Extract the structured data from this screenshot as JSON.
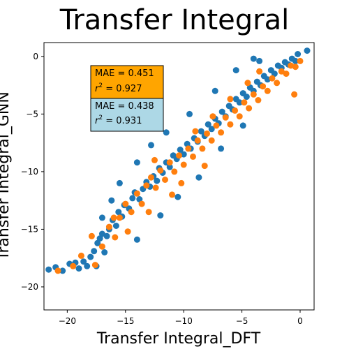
{
  "chart_data": {
    "type": "scatter",
    "title": "Transfer Integral",
    "xlabel": "Transfer Integral_DFT",
    "ylabel": "Transfer Integral_GNN",
    "xlim": [
      -22,
      1.2
    ],
    "ylim": [
      -22,
      1.2
    ],
    "xticks": [
      -20,
      -15,
      -10,
      -5,
      0
    ],
    "yticks": [
      -20,
      -15,
      -10,
      -5,
      0
    ],
    "xtick_labels": [
      "−20",
      "−15",
      "−10",
      "−5",
      "0"
    ],
    "ytick_labels": [
      "−20",
      "−15",
      "−10",
      "−5",
      "0"
    ],
    "grid": false,
    "colors": {
      "series_1": "#1f77b4",
      "series_2": "#ff7f0e"
    },
    "series": [
      {
        "color": "#1f77b4",
        "points": [
          [
            -21.6,
            -18.5
          ],
          [
            -21.0,
            -18.3
          ],
          [
            -20.4,
            -18.6
          ],
          [
            -19.8,
            -18.0
          ],
          [
            -19.3,
            -17.9
          ],
          [
            -19.0,
            -18.4
          ],
          [
            -18.6,
            -17.8
          ],
          [
            -18.3,
            -18.2
          ],
          [
            -18.0,
            -17.4
          ],
          [
            -17.7,
            -16.9
          ],
          [
            -17.4,
            -16.2
          ],
          [
            -17.2,
            -15.8
          ],
          [
            -17.0,
            -15.4
          ],
          [
            -16.6,
            -15.6
          ],
          [
            -16.4,
            -15.0
          ],
          [
            -16.1,
            -14.2
          ],
          [
            -15.8,
            -14.7
          ],
          [
            -15.6,
            -13.5
          ],
          [
            -15.3,
            -13.9
          ],
          [
            -15.1,
            -12.9
          ],
          [
            -14.7,
            -13.2
          ],
          [
            -14.4,
            -12.3
          ],
          [
            -14.2,
            -11.8
          ],
          [
            -13.8,
            -12.4
          ],
          [
            -13.5,
            -11.5
          ],
          [
            -13.2,
            -10.9
          ],
          [
            -12.9,
            -11.3
          ],
          [
            -12.6,
            -10.4
          ],
          [
            -12.3,
            -10.8
          ],
          [
            -12.1,
            -9.7
          ],
          [
            -11.8,
            -10.1
          ],
          [
            -11.5,
            -9.2
          ],
          [
            -11.2,
            -9.6
          ],
          [
            -10.9,
            -8.6
          ],
          [
            -10.6,
            -8.9
          ],
          [
            -10.3,
            -8.1
          ],
          [
            -10.0,
            -8.5
          ],
          [
            -9.7,
            -7.6
          ],
          [
            -9.4,
            -8.0
          ],
          [
            -9.1,
            -7.1
          ],
          [
            -8.8,
            -7.4
          ],
          [
            -8.5,
            -6.5
          ],
          [
            -8.2,
            -6.9
          ],
          [
            -7.9,
            -5.9
          ],
          [
            -7.6,
            -6.3
          ],
          [
            -7.3,
            -5.4
          ],
          [
            -7.0,
            -5.8
          ],
          [
            -6.7,
            -4.8
          ],
          [
            -6.4,
            -5.2
          ],
          [
            -6.1,
            -4.3
          ],
          [
            -5.8,
            -4.6
          ],
          [
            -5.5,
            -3.7
          ],
          [
            -5.2,
            -4.0
          ],
          [
            -4.9,
            -3.2
          ],
          [
            -4.6,
            -3.5
          ],
          [
            -4.3,
            -2.7
          ],
          [
            -4.0,
            -3.0
          ],
          [
            -3.7,
            -2.2
          ],
          [
            -3.4,
            -2.5
          ],
          [
            -3.1,
            -1.7
          ],
          [
            -2.8,
            -2.0
          ],
          [
            -2.5,
            -1.2
          ],
          [
            -2.2,
            -1.5
          ],
          [
            -1.9,
            -0.8
          ],
          [
            -1.6,
            -1.0
          ],
          [
            -1.3,
            -0.5
          ],
          [
            -1.0,
            -0.7
          ],
          [
            -0.7,
            -0.2
          ],
          [
            -0.4,
            -0.4
          ],
          [
            -0.2,
            0.2
          ],
          [
            0.6,
            0.5
          ],
          [
            -5.5,
            -1.2
          ],
          [
            -4.0,
            -0.2
          ],
          [
            -3.5,
            -0.4
          ],
          [
            -7.3,
            -3.0
          ],
          [
            -9.5,
            -5.0
          ],
          [
            -11.5,
            -6.6
          ],
          [
            -12.8,
            -7.7
          ],
          [
            -14.0,
            -9.2
          ],
          [
            -15.5,
            -11.0
          ],
          [
            -16.2,
            -12.5
          ],
          [
            -17.0,
            -14.0
          ],
          [
            -10.5,
            -12.2
          ],
          [
            -8.7,
            -10.5
          ],
          [
            -12.0,
            -13.8
          ],
          [
            -14.0,
            -15.9
          ],
          [
            -6.8,
            -8.0
          ],
          [
            -4.9,
            -6.0
          ],
          [
            -16.8,
            -17.0
          ],
          [
            -17.5,
            -18.2
          ]
        ]
      },
      {
        "color": "#ff7f0e",
        "points": [
          [
            -20.8,
            -18.6
          ],
          [
            -19.5,
            -18.2
          ],
          [
            -17.6,
            -18.1
          ],
          [
            -18.8,
            -17.3
          ],
          [
            -17.9,
            -15.6
          ],
          [
            -17.0,
            -16.5
          ],
          [
            -16.4,
            -14.8
          ],
          [
            -15.9,
            -15.7
          ],
          [
            -15.5,
            -14.0
          ],
          [
            -15.0,
            -12.8
          ],
          [
            -14.5,
            -13.5
          ],
          [
            -14.0,
            -11.9
          ],
          [
            -13.6,
            -12.8
          ],
          [
            -13.2,
            -11.2
          ],
          [
            -12.8,
            -10.5
          ],
          [
            -12.4,
            -11.4
          ],
          [
            -12.0,
            -9.9
          ],
          [
            -11.6,
            -10.7
          ],
          [
            -11.2,
            -9.2
          ],
          [
            -10.8,
            -10.0
          ],
          [
            -10.4,
            -8.6
          ],
          [
            -10.0,
            -9.4
          ],
          [
            -9.6,
            -8.0
          ],
          [
            -9.2,
            -8.7
          ],
          [
            -8.8,
            -7.3
          ],
          [
            -8.4,
            -8.0
          ],
          [
            -8.0,
            -6.7
          ],
          [
            -7.6,
            -7.3
          ],
          [
            -7.2,
            -6.0
          ],
          [
            -6.8,
            -6.6
          ],
          [
            -6.4,
            -5.3
          ],
          [
            -6.0,
            -5.9
          ],
          [
            -5.6,
            -4.7
          ],
          [
            -5.2,
            -5.2
          ],
          [
            -4.8,
            -4.0
          ],
          [
            -4.4,
            -4.5
          ],
          [
            -4.0,
            -3.3
          ],
          [
            -3.6,
            -3.8
          ],
          [
            -3.2,
            -2.6
          ],
          [
            -2.8,
            -3.0
          ],
          [
            -2.4,
            -1.9
          ],
          [
            -2.0,
            -2.3
          ],
          [
            -1.6,
            -1.3
          ],
          [
            -1.2,
            -1.5
          ],
          [
            -0.8,
            -0.8
          ],
          [
            -0.4,
            -0.9
          ],
          [
            0.0,
            -0.4
          ],
          [
            -0.5,
            -3.3
          ],
          [
            -3.5,
            -1.3
          ],
          [
            -11.0,
            -12.0
          ],
          [
            -13.0,
            -13.5
          ],
          [
            -9.0,
            -6.5
          ],
          [
            -7.5,
            -5.2
          ],
          [
            -14.8,
            -15.2
          ],
          [
            -16.0,
            -14.0
          ],
          [
            -12.5,
            -9.0
          ],
          [
            -6.0,
            -3.7
          ],
          [
            -4.5,
            -2.3
          ],
          [
            -8.2,
            -9.5
          ],
          [
            -10.2,
            -11.0
          ]
        ]
      }
    ],
    "annotations": [
      {
        "mae": "MAE = 0.451",
        "r2_symbol": "r",
        "r2_exp": "2",
        "r2_value": " = 0.927",
        "background": "#ffa500"
      },
      {
        "mae": "MAE = 0.438",
        "r2_symbol": "r",
        "r2_exp": "2",
        "r2_value": " = 0.931",
        "background": "#add8e6"
      }
    ]
  }
}
